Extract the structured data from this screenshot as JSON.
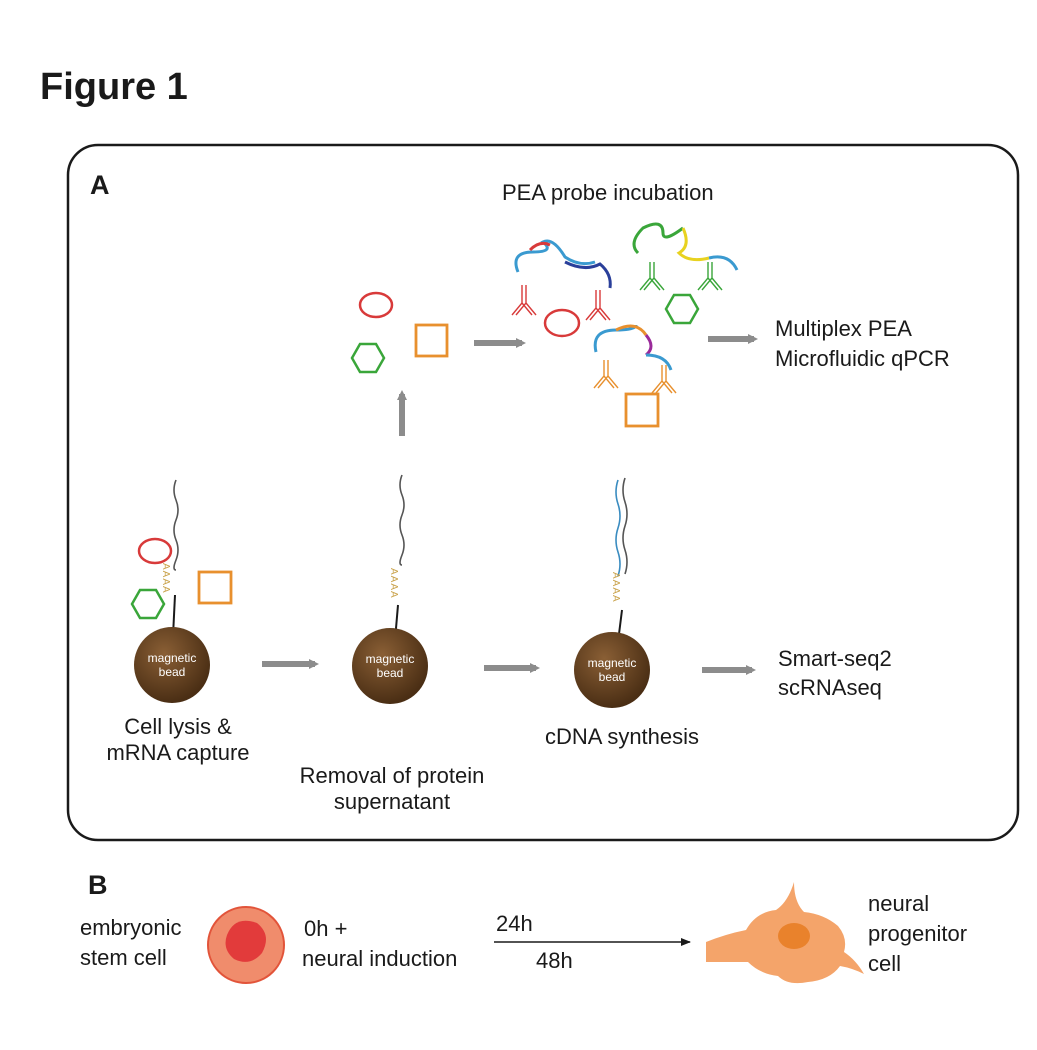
{
  "figure_title": "Figure 1",
  "panel_a": {
    "letter": "A",
    "pea_incubation": "PEA probe incubation",
    "pea_readout": [
      "Multiplex PEA",
      "Microfluidic qPCR"
    ],
    "rna_readout": [
      "Smart-seq2",
      "scRNAseq"
    ],
    "steps": [
      {
        "label": [
          "Cell lysis &",
          "mRNA capture"
        ]
      },
      {
        "label": [
          "Removal of protein",
          "supernatant"
        ]
      },
      {
        "label": [
          "cDNA synthesis"
        ]
      }
    ],
    "bead_label": [
      "magnetic",
      "bead"
    ],
    "polya": "AAAA"
  },
  "panel_b": {
    "letter": "B",
    "start_cell": [
      "embryonic",
      "stem cell"
    ],
    "induction": [
      "0h +",
      "neural induction"
    ],
    "time_above": "24h",
    "time_below": "48h",
    "end_cell": [
      "neural",
      "progenitor",
      "cell"
    ]
  },
  "colors": {
    "bead": "#5a3a1c",
    "arrow": "#8c8c8c",
    "circle_protein": "#d83a3a",
    "hexagon_protein": "#3aa63a",
    "square_protein": "#e8902e",
    "polya": "#c9a24a",
    "stem_cell_outer": "#f08c6c",
    "stem_cell_nucleus": "#e23b3b",
    "progenitor": "#f4a46a",
    "progenitor_nucleus": "#e9822c"
  },
  "icons": [
    "magnetic-bead-icon",
    "antibody-icon",
    "dna-probe-icon",
    "protein-circle-icon",
    "protein-hexagon-icon",
    "protein-square-icon",
    "arrow-icon"
  ]
}
